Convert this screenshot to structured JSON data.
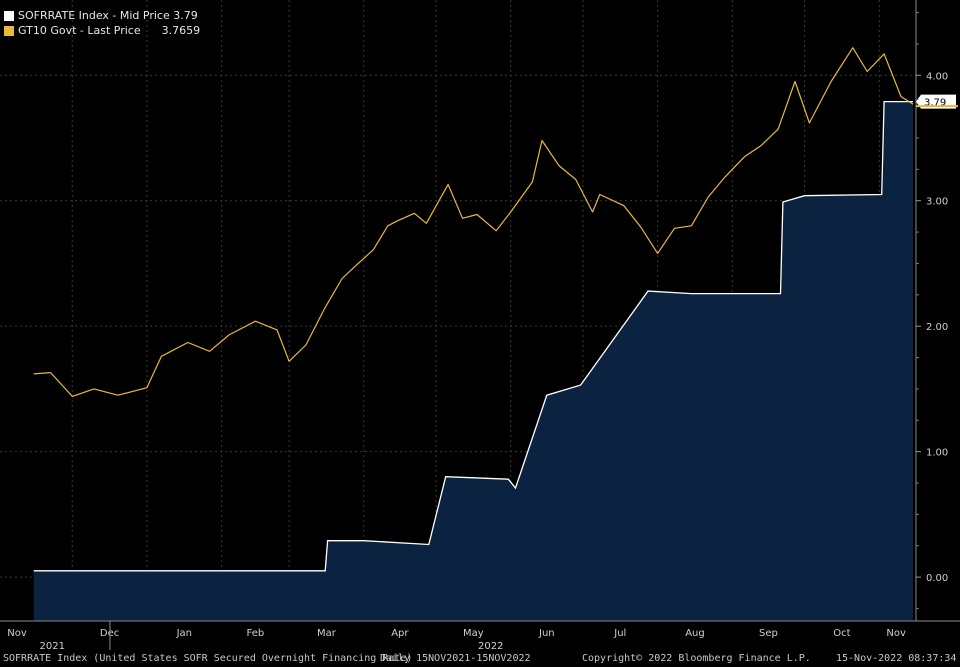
{
  "legend": {
    "sofr_label": "SOFRRATE Index - Mid Price 3.79",
    "gt10_label": "GT10 Govt - Last Price      3.7659",
    "sofr_color": "#ffffff",
    "gt10_color": "#e8b93a"
  },
  "last_value_tags": {
    "sofr": "3.79"
  },
  "footer": {
    "description": "SOFRRATE Index (United States SOFR Secured Overnight Financing Rate)",
    "range": "Daily 15NOV2021-15NOV2022",
    "copyright": "Copyright© 2022 Bloomberg Finance L.P.",
    "timestamp": "15-Nov-2022 08:37:34"
  },
  "chart_data": {
    "type": "line",
    "x_range": [
      "2021-11-15",
      "2022-11-15"
    ],
    "x_tick_labels": [
      "Nov",
      "Dec",
      "Jan",
      "Feb",
      "Mar",
      "Apr",
      "May",
      "Jun",
      "Jul",
      "Aug",
      "Sep",
      "Oct",
      "Nov"
    ],
    "x_tick_dates": [
      "2021-11-01",
      "2021-12-01",
      "2022-01-01",
      "2022-02-01",
      "2022-03-01",
      "2022-04-01",
      "2022-05-01",
      "2022-06-01",
      "2022-07-01",
      "2022-08-01",
      "2022-09-01",
      "2022-10-01",
      "2022-11-01"
    ],
    "year_labels": [
      {
        "label": "2021",
        "date": "2021-12-01"
      },
      {
        "label": "2022",
        "date": "2022-06-01"
      }
    ],
    "y_ticks": [
      "0.00",
      "1.00",
      "2.00",
      "3.00",
      "4.00"
    ],
    "ylim": [
      -0.35,
      4.6
    ],
    "grid": true,
    "legend_position": "top-left",
    "series": [
      {
        "name": "SOFRRATE Index - Mid Price",
        "style": "area",
        "x": [
          "2021-11-15",
          "2022-03-16",
          "2022-03-17",
          "2022-04-01",
          "2022-04-28",
          "2022-05-05",
          "2022-05-31",
          "2022-06-03",
          "2022-06-16",
          "2022-06-30",
          "2022-07-28",
          "2022-08-15",
          "2022-09-21",
          "2022-09-22",
          "2022-10-01",
          "2022-11-02",
          "2022-11-03",
          "2022-11-15"
        ],
        "values": [
          0.05,
          0.05,
          0.29,
          0.29,
          0.26,
          0.8,
          0.78,
          0.71,
          1.45,
          1.53,
          2.28,
          2.26,
          2.26,
          2.99,
          3.04,
          3.05,
          3.79,
          3.79
        ]
      },
      {
        "name": "GT10 Govt - Last Price",
        "style": "line",
        "x": [
          "2021-11-15",
          "2021-11-22",
          "2021-12-01",
          "2021-12-10",
          "2021-12-20",
          "2022-01-01",
          "2022-01-07",
          "2022-01-18",
          "2022-01-27",
          "2022-02-04",
          "2022-02-15",
          "2022-02-24",
          "2022-03-01",
          "2022-03-08",
          "2022-03-16",
          "2022-03-23",
          "2022-03-28",
          "2022-04-05",
          "2022-04-11",
          "2022-04-15",
          "2022-04-22",
          "2022-04-27",
          "2022-05-06",
          "2022-05-12",
          "2022-05-18",
          "2022-05-26",
          "2022-06-01",
          "2022-06-10",
          "2022-06-14",
          "2022-06-21",
          "2022-06-28",
          "2022-07-05",
          "2022-07-08",
          "2022-07-18",
          "2022-07-25",
          "2022-08-01",
          "2022-08-08",
          "2022-08-15",
          "2022-08-22",
          "2022-08-29",
          "2022-09-06",
          "2022-09-13",
          "2022-09-20",
          "2022-09-27",
          "2022-10-03",
          "2022-10-12",
          "2022-10-21",
          "2022-10-27",
          "2022-11-03",
          "2022-11-10",
          "2022-11-15"
        ],
        "values": [
          1.62,
          1.63,
          1.44,
          1.5,
          1.45,
          1.51,
          1.76,
          1.87,
          1.8,
          1.93,
          2.04,
          1.97,
          1.72,
          1.85,
          2.15,
          2.38,
          2.47,
          2.61,
          2.8,
          2.84,
          2.9,
          2.82,
          3.13,
          2.86,
          2.89,
          2.76,
          2.91,
          3.15,
          3.48,
          3.28,
          3.17,
          2.91,
          3.05,
          2.96,
          2.79,
          2.58,
          2.78,
          2.8,
          3.03,
          3.19,
          3.35,
          3.44,
          3.57,
          3.95,
          3.62,
          3.95,
          4.22,
          4.03,
          4.17,
          3.83,
          3.77
        ]
      }
    ]
  }
}
